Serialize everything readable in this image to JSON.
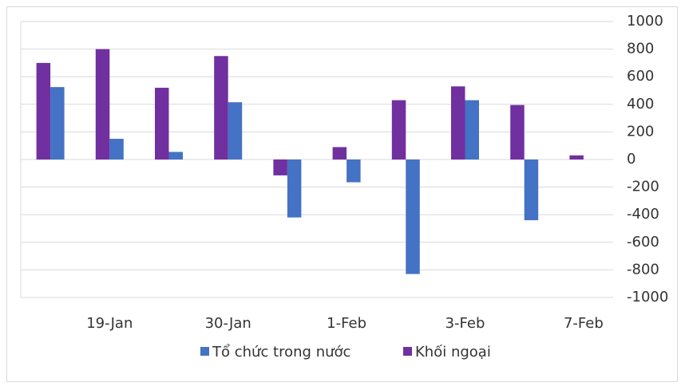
{
  "chart_data": {
    "type": "bar",
    "categories": [
      null,
      "19-Jan",
      null,
      "30-Jan",
      null,
      "1-Feb",
      null,
      "3-Feb",
      null,
      "7-Feb"
    ],
    "series": [
      {
        "name": "Tổ chức trong nước",
        "color": "#4472c4",
        "values": [
          525,
          150,
          55,
          415,
          -420,
          -165,
          -830,
          430,
          -440,
          0
        ]
      },
      {
        "name": "Khối ngoại",
        "color": "#7030a0",
        "values": [
          700,
          800,
          520,
          750,
          -115,
          90,
          430,
          530,
          395,
          30
        ]
      }
    ],
    "ylim": [
      -1000,
      1000
    ],
    "yticks": [
      -1000,
      -800,
      -600,
      -400,
      -200,
      0,
      200,
      400,
      600,
      800,
      1000
    ],
    "grid": true
  }
}
